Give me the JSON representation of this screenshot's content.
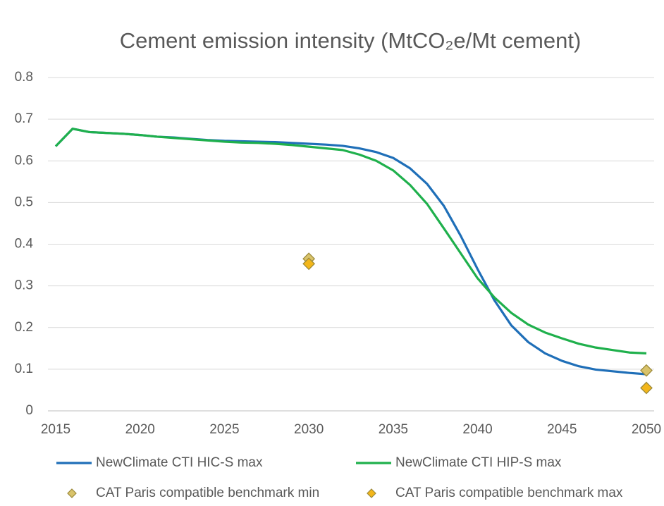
{
  "chart_data": {
    "type": "line",
    "title": "Cement emission intensity (MtCO₂e/Mt cement)",
    "xlim": [
      2015,
      2050
    ],
    "xticks": [
      2015,
      2020,
      2025,
      2030,
      2035,
      2040,
      2045,
      2050
    ],
    "ylim": [
      0,
      0.8
    ],
    "yticks": [
      0,
      0.1,
      0.2,
      0.3,
      0.4,
      0.5,
      0.6,
      0.7,
      0.8
    ],
    "grid": true,
    "legend": "bottom",
    "series": [
      {
        "name": "NewClimate CTI HIC-S max",
        "type": "line",
        "color": "#1f6fb8",
        "x": [
          2015,
          2016,
          2017,
          2018,
          2019,
          2020,
          2021,
          2022,
          2023,
          2024,
          2025,
          2026,
          2027,
          2028,
          2029,
          2030,
          2031,
          2032,
          2033,
          2034,
          2035,
          2036,
          2037,
          2038,
          2039,
          2040,
          2041,
          2042,
          2043,
          2044,
          2045,
          2046,
          2047,
          2048,
          2049,
          2050
        ],
        "values": [
          0.635,
          0.677,
          0.669,
          0.667,
          0.665,
          0.662,
          0.658,
          0.656,
          0.653,
          0.65,
          0.648,
          0.647,
          0.646,
          0.645,
          0.643,
          0.641,
          0.639,
          0.636,
          0.63,
          0.621,
          0.607,
          0.582,
          0.545,
          0.492,
          0.42,
          0.34,
          0.265,
          0.205,
          0.165,
          0.138,
          0.12,
          0.107,
          0.099,
          0.095,
          0.091,
          0.088
        ]
      },
      {
        "name": "NewClimate CTI HIP-S max",
        "type": "line",
        "color": "#1fb04c",
        "x": [
          2015,
          2016,
          2017,
          2018,
          2019,
          2020,
          2021,
          2022,
          2023,
          2024,
          2025,
          2026,
          2027,
          2028,
          2029,
          2030,
          2031,
          2032,
          2033,
          2034,
          2035,
          2036,
          2037,
          2038,
          2039,
          2040,
          2041,
          2042,
          2043,
          2044,
          2045,
          2046,
          2047,
          2048,
          2049,
          2050
        ],
        "values": [
          0.635,
          0.677,
          0.669,
          0.667,
          0.665,
          0.662,
          0.658,
          0.655,
          0.652,
          0.649,
          0.646,
          0.644,
          0.643,
          0.641,
          0.638,
          0.634,
          0.63,
          0.626,
          0.615,
          0.6,
          0.577,
          0.542,
          0.497,
          0.438,
          0.378,
          0.318,
          0.272,
          0.235,
          0.207,
          0.188,
          0.174,
          0.161,
          0.152,
          0.146,
          0.14,
          0.138
        ]
      },
      {
        "name": "CAT Paris compatible benchmark min",
        "type": "scatter",
        "color": "#d9c36b",
        "x": [
          2030,
          2050
        ],
        "values": [
          0.365,
          0.097
        ]
      },
      {
        "name": "CAT Paris compatible benchmark max",
        "type": "scatter",
        "color": "#f3b61a",
        "x": [
          2030,
          2050
        ],
        "values": [
          0.353,
          0.055
        ]
      }
    ]
  }
}
